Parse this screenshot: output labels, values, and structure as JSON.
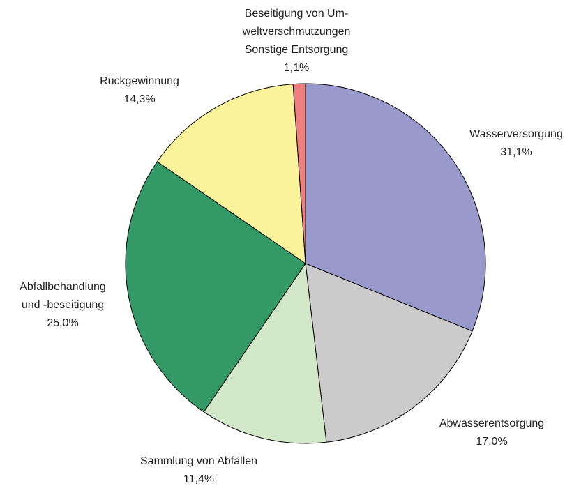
{
  "chart_data": {
    "type": "pie",
    "categories": [
      [
        "Wasserversorgung"
      ],
      [
        "Abwasserentsorgung"
      ],
      [
        "Sammlung von Abfällen"
      ],
      [
        "Abfallbehandlung",
        "und -beseitigung"
      ],
      [
        "Rückgewinnung"
      ],
      [
        "Beseitigung von Um-",
        "weltverschmutzungen",
        "Sonstige Entsorgung"
      ]
    ],
    "values": [
      31.1,
      17.0,
      11.4,
      25.0,
      14.3,
      1.1
    ],
    "value_labels": [
      "31,1%",
      "17,0%",
      "11,4%",
      "25,0%",
      "14,3%",
      "1,1%"
    ],
    "colors": [
      "#9999cc",
      "#cbcbcb",
      "#d2e8c8",
      "#339966",
      "#fbf39b",
      "#f08080"
    ]
  }
}
